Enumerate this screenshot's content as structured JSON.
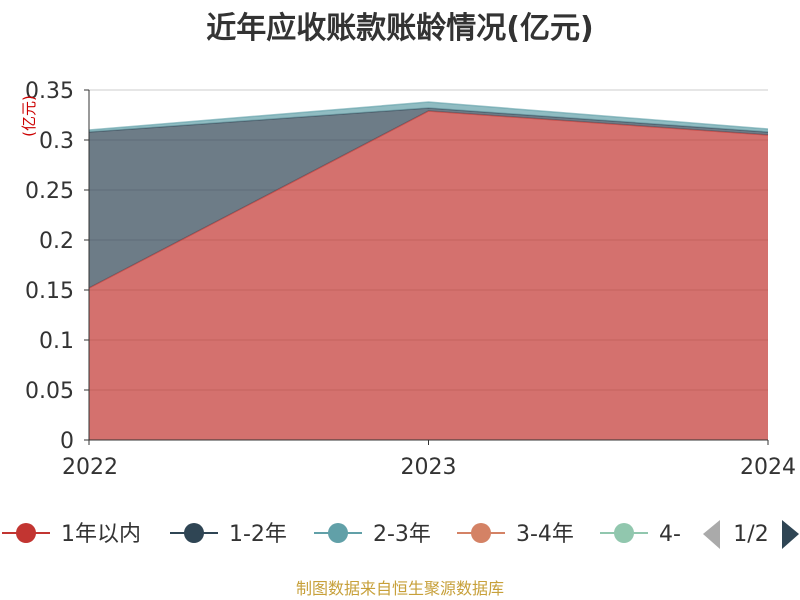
{
  "chart_data": {
    "type": "area",
    "stacked": true,
    "title": "近年应收账款账龄情况(亿元)",
    "ylabel": "(亿元)",
    "xlabel": "",
    "x": [
      "2022",
      "2023",
      "2024"
    ],
    "ylim": [
      0,
      0.35
    ],
    "yticks": [
      "0",
      "0.05",
      "0.1",
      "0.15",
      "0.2",
      "0.25",
      "0.3",
      "0.35"
    ],
    "ytick_values": [
      0,
      0.05,
      0.1,
      0.15,
      0.2,
      0.25,
      0.3,
      0.35
    ],
    "grid": true,
    "legend_position": "bottom",
    "series": [
      {
        "name": "1年以内",
        "color": "#c23531",
        "values": [
          0.152,
          0.329,
          0.305
        ]
      },
      {
        "name": "1-2年",
        "color": "#2f4554",
        "values": [
          0.156,
          0.003,
          0.003
        ]
      },
      {
        "name": "2-3年",
        "color": "#61a0a8",
        "values": [
          0.002,
          0.006,
          0.003
        ]
      }
    ],
    "legend": [
      {
        "name": "1年以内",
        "color": "#c23531"
      },
      {
        "name": "1-2年",
        "color": "#2f4554"
      },
      {
        "name": "2-3年",
        "color": "#61a0a8"
      },
      {
        "name": "3-4年",
        "color": "#d48265"
      },
      {
        "name": "4-",
        "color": "#91c7ae"
      }
    ],
    "legend_page": "1/2"
  },
  "footer": {
    "source": "制图数据来自恒生聚源数据库"
  }
}
